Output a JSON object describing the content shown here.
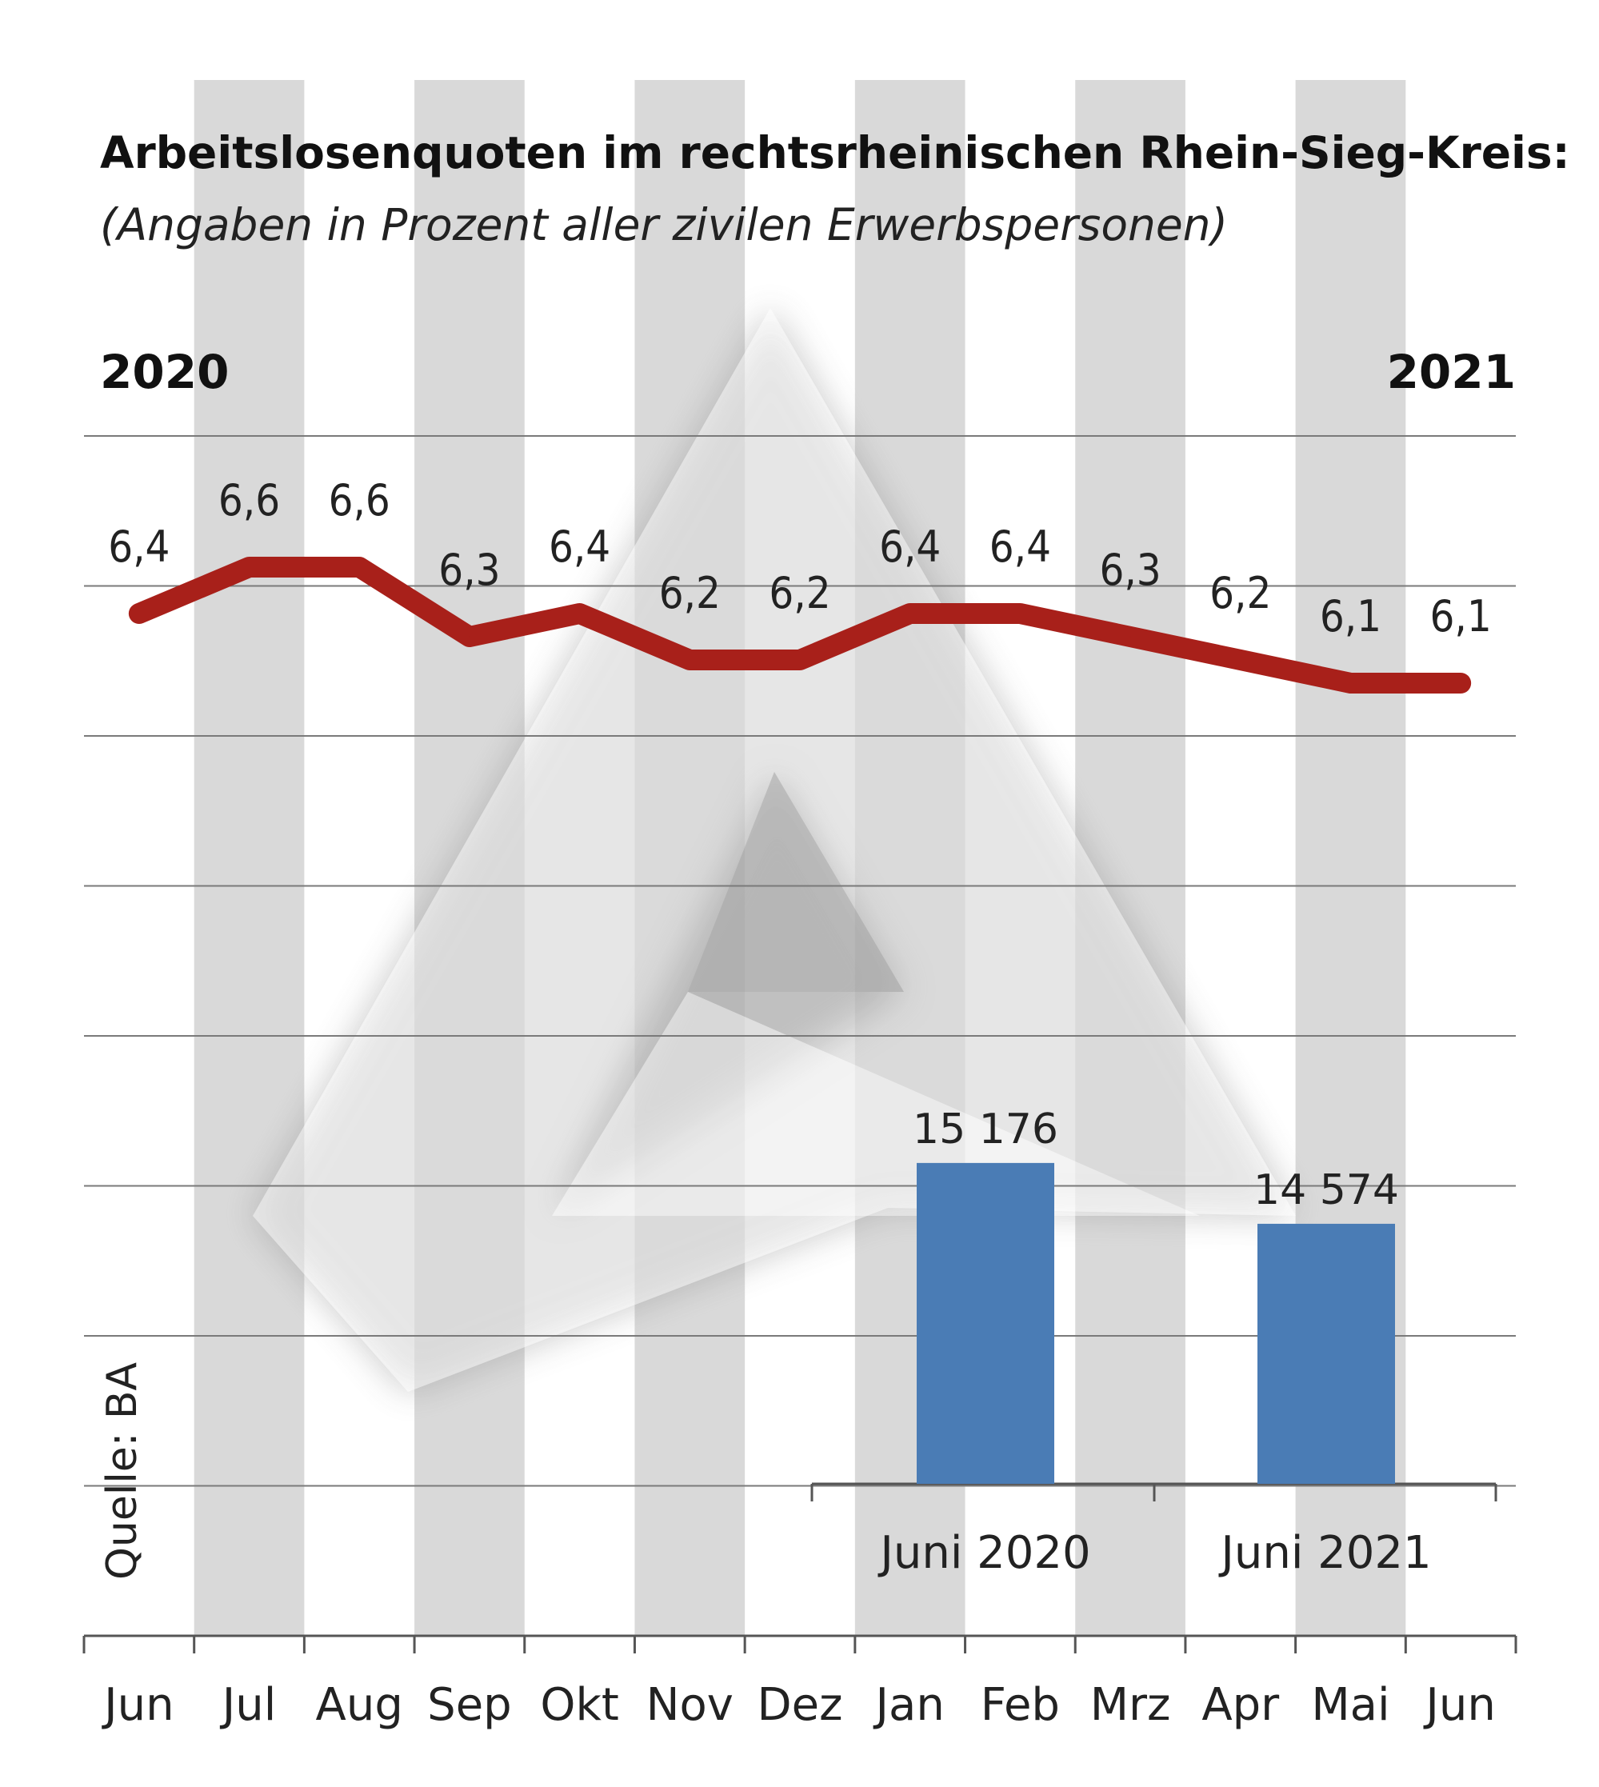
{
  "chart_data": [
    {
      "type": "line",
      "title": "Arbeitslosenquoten im rechtsrheinischen Rhein-Sieg-Kreis:",
      "subtitle": "(Angaben in Prozent aller zivilen Erwerbspersonen)",
      "year_start": "2020",
      "year_end": "2021",
      "categories": [
        "Jun",
        "Jul",
        "Aug",
        "Sep",
        "Okt",
        "Nov",
        "Dez",
        "Jan",
        "Feb",
        "Mrz",
        "Apr",
        "Mai",
        "Jun"
      ],
      "values": [
        6.4,
        6.6,
        6.6,
        6.3,
        6.4,
        6.2,
        6.2,
        6.4,
        6.4,
        6.3,
        6.2,
        6.1,
        6.1
      ],
      "value_labels": [
        "6,4",
        "6,6",
        "6,6",
        "6,3",
        "6,4",
        "6,2",
        "6,2",
        "6,4",
        "6,4",
        "6,3",
        "6,2",
        "6,1",
        "6,1"
      ],
      "line_color": "#a8201a",
      "grid": true
    },
    {
      "type": "bar",
      "categories": [
        "Juni 2020",
        "Juni 2021"
      ],
      "values": [
        15176,
        14574
      ],
      "value_labels": [
        "15 176",
        "14 574"
      ],
      "bar_color": "#4a7cb5"
    }
  ],
  "source": "Quelle: BA",
  "colors": {
    "stripe": "#d9d9d9",
    "gridline": "#7a7a7a",
    "watermark": "#9a9a9a"
  }
}
